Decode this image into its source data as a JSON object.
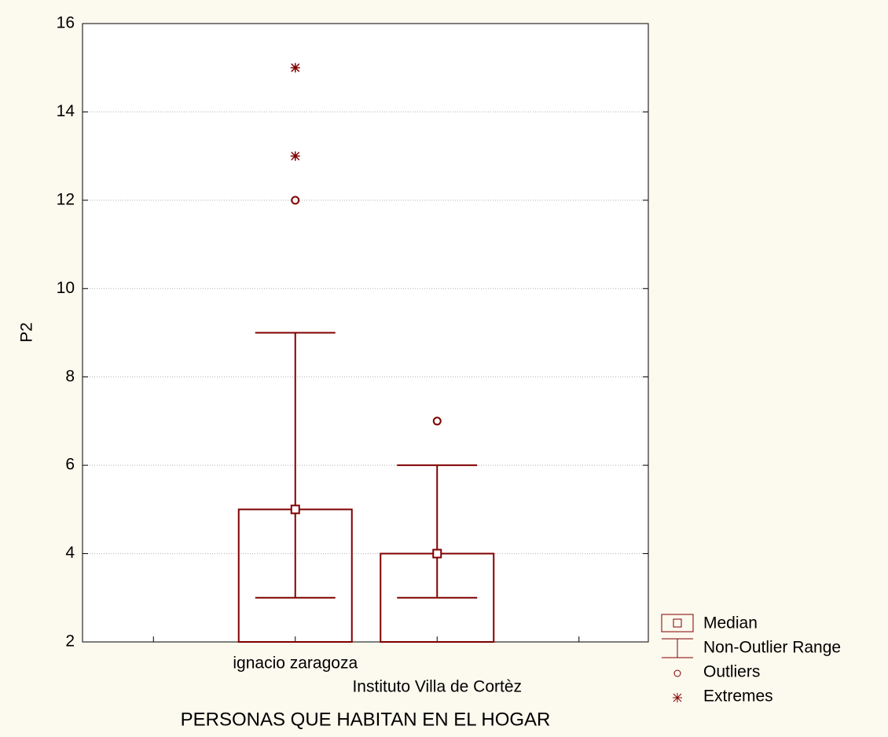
{
  "chart_data": {
    "type": "box",
    "x_label": "PERSONAS QUE HABITAN EN EL HOGAR",
    "y_label": "P2",
    "categories": [
      "ignacio zaragoza",
      "Instituto Villa de Cortèz"
    ],
    "medians": [
      5,
      4
    ],
    "mins": [
      3,
      3
    ],
    "maxs": [
      9,
      6
    ],
    "outliers": [
      [
        12
      ],
      [
        7
      ]
    ],
    "extremes": [
      [
        13,
        15
      ],
      []
    ],
    "color": "#800000",
    "ylim": [
      2,
      16
    ],
    "yticks": [
      2,
      4,
      6,
      8,
      10,
      12,
      14,
      16
    ],
    "grid": true,
    "legend": [
      "Median",
      "Non-Outlier Range",
      "Outliers",
      "Extremes"
    ]
  }
}
